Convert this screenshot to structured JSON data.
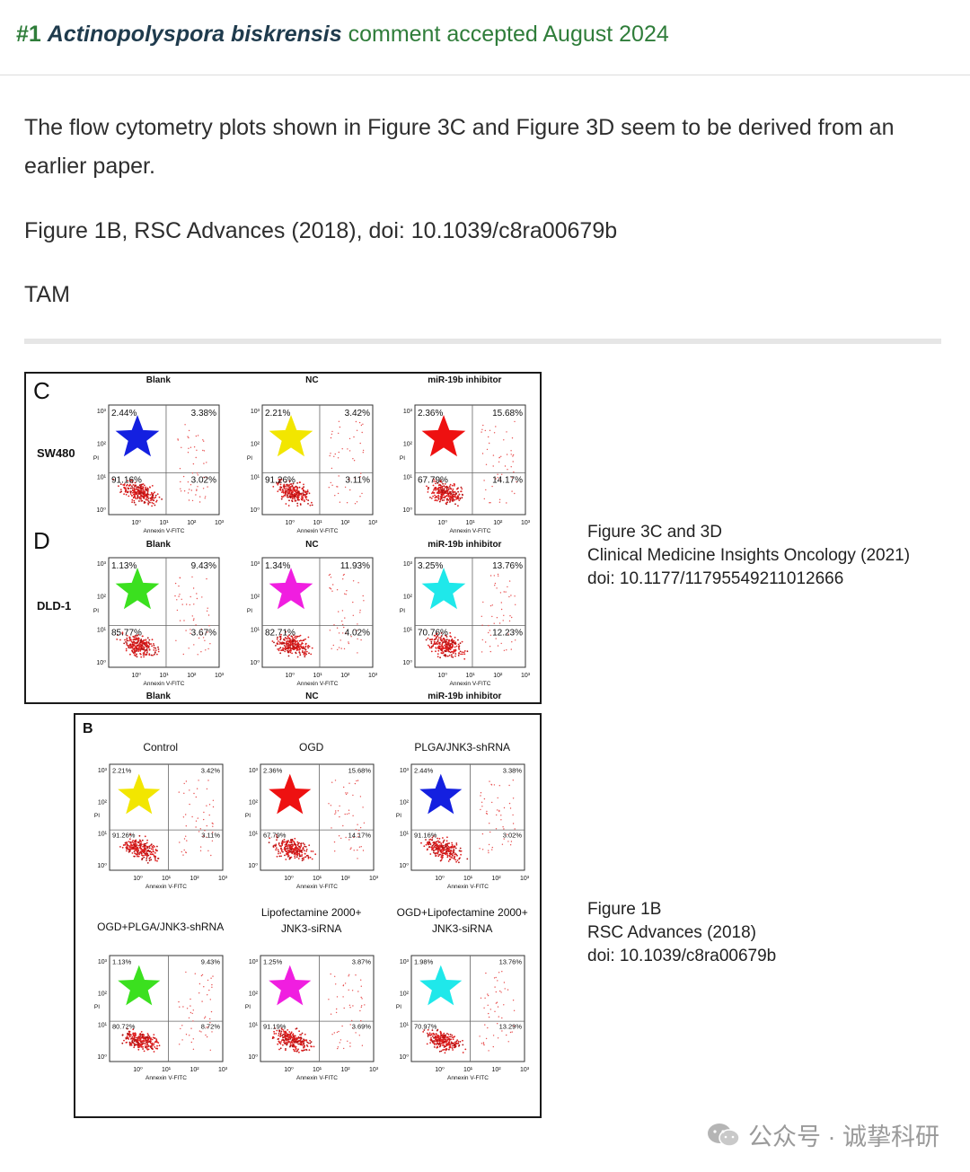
{
  "header": {
    "number": "#1",
    "species": "Actinopolyspora biskrensis",
    "rest": "comment accepted August 2024"
  },
  "comment": {
    "para1": "The flow cytometry plots shown in Figure 3C and Figure 3D seem to be derived from an earlier paper.",
    "para2": "Figure 1B, RSC Advances (2018), doi: 10.1039/c8ra00679b",
    "para3": "TAM"
  },
  "figure_top": {
    "label_c": "C",
    "label_d": "D",
    "cols": [
      "Blank",
      "NC",
      "miR-19b inhibitor"
    ],
    "rows": [
      {
        "name": "SW480",
        "plots": [
          {
            "q": [
              "2.44%",
              "3.38%",
              "91.16%",
              "3.02%"
            ],
            "star": "#1420e0"
          },
          {
            "q": [
              "2.21%",
              "3.42%",
              "91.26%",
              "3.11%"
            ],
            "star": "#f2e600"
          },
          {
            "q": [
              "2.36%",
              "15.68%",
              "67.79%",
              "14.17%"
            ],
            "star": "#ee1111"
          }
        ]
      },
      {
        "name": "DLD-1",
        "plots": [
          {
            "q": [
              "1.13%",
              "9.43%",
              "85.77%",
              "3.67%"
            ],
            "star": "#3be01f"
          },
          {
            "q": [
              "1.34%",
              "11.93%",
              "82.71%",
              "4.02%"
            ],
            "star": "#f01ee0"
          },
          {
            "q": [
              "3.25%",
              "13.76%",
              "70.76%",
              "12.23%"
            ],
            "star": "#1fe8ea"
          }
        ]
      }
    ],
    "xaxis": "Annexin V-FITC",
    "yaxis": "PI",
    "ticks": [
      "10⁰",
      "10¹",
      "10²",
      "10³"
    ]
  },
  "figure_bottom": {
    "label_b": "B",
    "plots": [
      {
        "title": [
          "Control"
        ],
        "q": [
          "2.21%",
          "3.42%",
          "91.26%",
          "3.11%"
        ],
        "star": "#f2e600"
      },
      {
        "title": [
          "OGD"
        ],
        "q": [
          "2.36%",
          "15.68%",
          "67.79%",
          "14.17%"
        ],
        "star": "#ee1111"
      },
      {
        "title": [
          "PLGA/JNK3-shRNA"
        ],
        "q": [
          "2.44%",
          "3.38%",
          "91.16%",
          "3.02%"
        ],
        "star": "#1420e0"
      },
      {
        "title": [
          "OGD+PLGA/JNK3-shRNA"
        ],
        "q": [
          "1.13%",
          "9.43%",
          "80.72%",
          "8.72%"
        ],
        "star": "#3be01f"
      },
      {
        "title": [
          "Lipofectamine 2000+",
          "JNK3-siRNA"
        ],
        "q": [
          "1.25%",
          "3.87%",
          "91.19%",
          "3.69%"
        ],
        "star": "#f01ee0"
      },
      {
        "title": [
          "OGD+Lipofectamine 2000+",
          "JNK3-siRNA"
        ],
        "q": [
          "1.98%",
          "13.76%",
          "70.97%",
          "13.29%"
        ],
        "star": "#1fe8ea"
      }
    ],
    "xaxis": "Annexin V-FITC",
    "yaxis": "PI"
  },
  "notes": {
    "top": [
      "Figure 3C and 3D",
      "Clinical Medicine Insights Oncology (2021)",
      "doi: 10.1177/11795549211012666"
    ],
    "bottom": [
      "Figure 1B",
      "RSC Advances (2018)",
      "doi: 10.1039/c8ra00679b"
    ]
  },
  "watermark": "公众号 · 诚挚科研"
}
